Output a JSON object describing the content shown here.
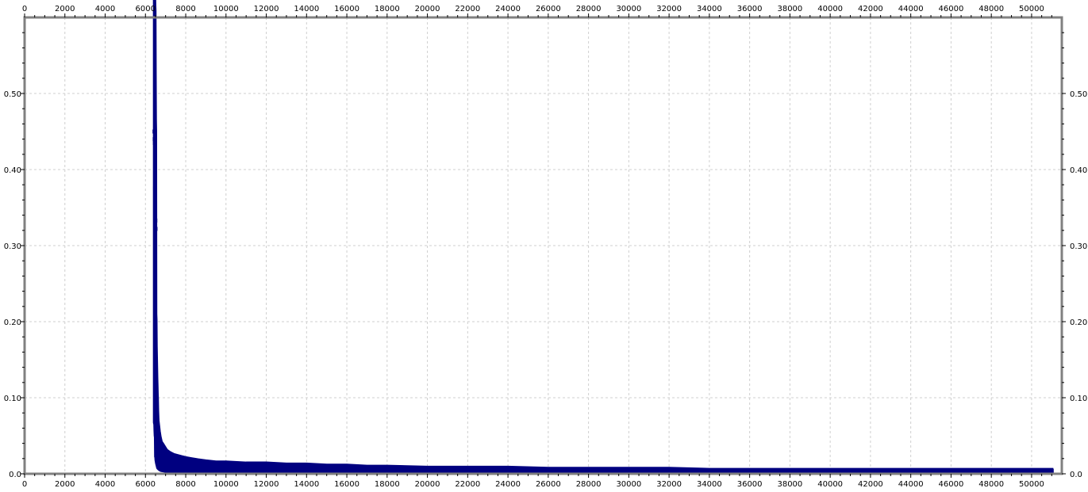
{
  "chart_data": {
    "type": "scatter",
    "title": "",
    "xlabel": "",
    "ylabel": "",
    "xlim": [
      0,
      51500
    ],
    "ylim": [
      0,
      0.6
    ],
    "grid": true,
    "legend": "none",
    "x_ticks": [
      0,
      2000,
      4000,
      6000,
      8000,
      10000,
      12000,
      14000,
      16000,
      18000,
      20000,
      22000,
      24000,
      26000,
      28000,
      30000,
      32000,
      34000,
      36000,
      38000,
      40000,
      42000,
      44000,
      46000,
      48000,
      50000
    ],
    "x_tick_labels": [
      "0",
      "2000",
      "4000",
      "6000",
      "8000",
      "10000",
      "12000",
      "14000",
      "16000",
      "18000",
      "20000",
      "22000",
      "24000",
      "26000",
      "28000",
      "30000",
      "32000",
      "34000",
      "36000",
      "38000",
      "40000",
      "42000",
      "44000",
      "46000",
      "48000",
      "50000"
    ],
    "y_ticks": [
      0,
      0.1,
      0.2,
      0.3,
      0.4,
      0.5
    ],
    "y_tick_labels": [
      "0.0",
      "0.10",
      "0.20",
      "0.30",
      "0.40",
      "0.50"
    ],
    "series": [
      {
        "color": "#000080",
        "marker": "square",
        "points": [
          [
            6450,
            0.45
          ],
          [
            6460,
            0.44
          ],
          [
            6470,
            0.435
          ],
          [
            6480,
            0.375
          ],
          [
            6490,
            0.333
          ],
          [
            6500,
            0.322
          ],
          [
            6510,
            0.15
          ],
          [
            6520,
            0.145
          ],
          [
            6530,
            0.12
          ],
          [
            6540,
            0.11
          ],
          [
            6550,
            0.1
          ],
          [
            6560,
            0.09
          ],
          [
            6570,
            0.083
          ],
          [
            6580,
            0.075
          ],
          [
            6590,
            0.07
          ],
          [
            6600,
            0.06
          ],
          [
            6620,
            0.05
          ],
          [
            6650,
            0.045
          ],
          [
            6680,
            0.04
          ],
          [
            6720,
            0.035
          ],
          [
            6780,
            0.03
          ],
          [
            6850,
            0.028
          ],
          [
            6950,
            0.025
          ],
          [
            7050,
            0.022
          ],
          [
            7200,
            0.02
          ],
          [
            7400,
            0.018
          ],
          [
            7600,
            0.017
          ],
          [
            7800,
            0.016
          ],
          [
            8000,
            0.015
          ],
          [
            8300,
            0.014
          ],
          [
            8600,
            0.013
          ],
          [
            9000,
            0.012
          ],
          [
            9500,
            0.011
          ],
          [
            10000,
            0.011
          ],
          [
            11000,
            0.01
          ],
          [
            12000,
            0.01
          ],
          [
            13000,
            0.009
          ],
          [
            14000,
            0.009
          ],
          [
            15000,
            0.008
          ],
          [
            16000,
            0.008
          ],
          [
            17000,
            0.007
          ],
          [
            18000,
            0.007
          ],
          [
            20000,
            0.006
          ],
          [
            22000,
            0.006
          ],
          [
            24000,
            0.006
          ],
          [
            26000,
            0.005
          ],
          [
            28000,
            0.005
          ],
          [
            30000,
            0.005
          ],
          [
            32000,
            0.005
          ],
          [
            34000,
            0.004
          ],
          [
            36000,
            0.004
          ],
          [
            38000,
            0.004
          ],
          [
            40000,
            0.004
          ],
          [
            42000,
            0.004
          ],
          [
            44000,
            0.004
          ],
          [
            46000,
            0.004
          ],
          [
            48000,
            0.004
          ],
          [
            50000,
            0.004
          ],
          [
            51000,
            0.004
          ]
        ]
      }
    ]
  }
}
